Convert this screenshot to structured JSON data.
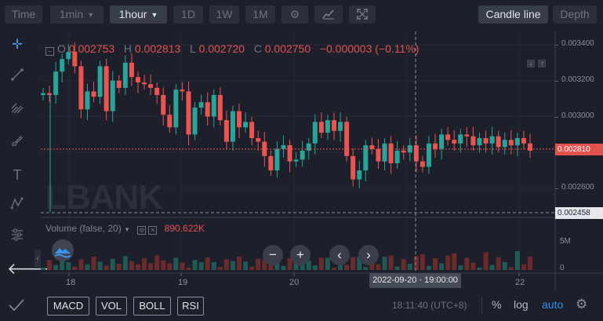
{
  "toolbar": {
    "time": "Time",
    "interval_1": "1min",
    "interval_2": "1hour",
    "btn_1d": "1D",
    "btn_1w": "1W",
    "btn_1m": "1M",
    "candle_line": "Candle line",
    "depth": "Depth"
  },
  "ohlc": {
    "o_label": "O",
    "o": "0.002753",
    "h_label": "H",
    "h": "0.002813",
    "l_label": "L",
    "l": "0.002720",
    "c_label": "C",
    "c": "0.002750",
    "change": "−0.000003 (−0.11%)"
  },
  "watermark": "LBANK",
  "volume": {
    "label": "Volume (false, 20)",
    "value": "890.622K"
  },
  "price_axis": [
    "0.003400",
    "0.003200",
    "0.003000",
    "0.002600"
  ],
  "current_price": "0.002810",
  "low_marker": "0.002458",
  "volume_axis": [
    "5M",
    "0"
  ],
  "x_axis": [
    "18",
    "19",
    "20",
    "22"
  ],
  "crosshair_time": "2022-09-20 · 19:00:00",
  "indicators": [
    "MACD",
    "VOL",
    "BOLL",
    "RSI"
  ],
  "status": {
    "clock": "18:11:40 (UTC+8)",
    "percent": "%",
    "log": "log",
    "auto": "auto"
  },
  "colors": {
    "up": "#26a69a",
    "down": "#ef5350",
    "accent": "#2f8ee5"
  }
}
